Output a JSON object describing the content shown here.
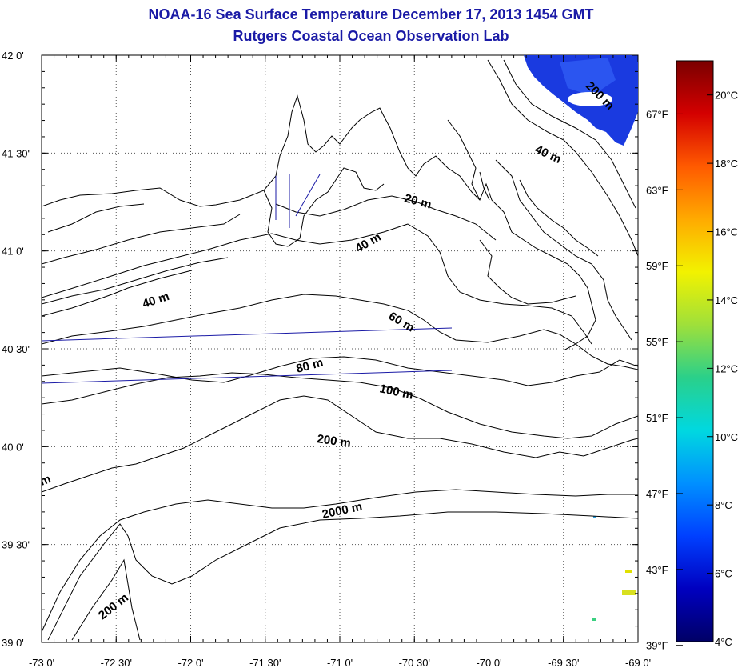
{
  "title": "NOAA-16 Sea Surface Temperature December 17, 2013 1454 GMT",
  "subtitle": "Rutgers Coastal Ocean Observation Lab",
  "map": {
    "lon_range": [
      -73.0,
      -69.0
    ],
    "lat_range": [
      39.0,
      42.0
    ],
    "grid": true,
    "x_ticks": [
      "-73 0'",
      "-72 30'",
      "-72 0'",
      "-71 30'",
      "-71 0'",
      "-70 30'",
      "-70 0'",
      "-69 30'",
      "-69 0'"
    ],
    "y_ticks": [
      "42 0'",
      "41 30'",
      "41 0'",
      "40 30'",
      "40 0'",
      "39 30'",
      "39 0'"
    ],
    "fahrenheit_ticks": [
      "67°F",
      "63°F",
      "59°F",
      "55°F",
      "51°F",
      "47°F",
      "43°F",
      "39°F"
    ],
    "contour_labels": [
      "200 m",
      "40 m",
      "20 m",
      "40 m",
      "40 m",
      "60 m",
      "80 m",
      "100 m",
      "200 m",
      "2000 m",
      "200 m",
      "m"
    ],
    "land_color": "#ffffff",
    "sst_patch_color": "#1a3ae0"
  },
  "colorbar": {
    "celsius_ticks": [
      "20°C",
      "18°C",
      "16°C",
      "14°C",
      "12°C",
      "10°C",
      "8°C",
      "6°C",
      "4°C"
    ],
    "stops": [
      "#7a0000",
      "#d40000",
      "#ff5a00",
      "#ffaa00",
      "#f2f200",
      "#9fe03a",
      "#2ad08a",
      "#00d8e0",
      "#0090ff",
      "#0040ff",
      "#0000c0",
      "#000066"
    ]
  }
}
